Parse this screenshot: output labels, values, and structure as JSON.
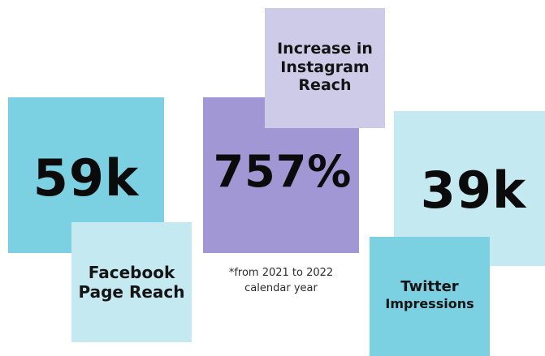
{
  "facebook": {
    "value": "59k",
    "label": "Facebook Page Reach"
  },
  "instagram": {
    "value": "757%",
    "label": "Increase in Instagram Reach",
    "footnote_line1": "*from 2021 to 2022",
    "footnote_line2": "calendar year"
  },
  "twitter": {
    "value": "39k",
    "label_line1": "Twitter",
    "label_line2": "Impressions"
  },
  "colors": {
    "cyan": "#7bd1e1",
    "light_cyan": "#c5e9f1",
    "purple": "#a197d4",
    "light_purple": "#cecbe9",
    "text": "#0b0b0b"
  }
}
